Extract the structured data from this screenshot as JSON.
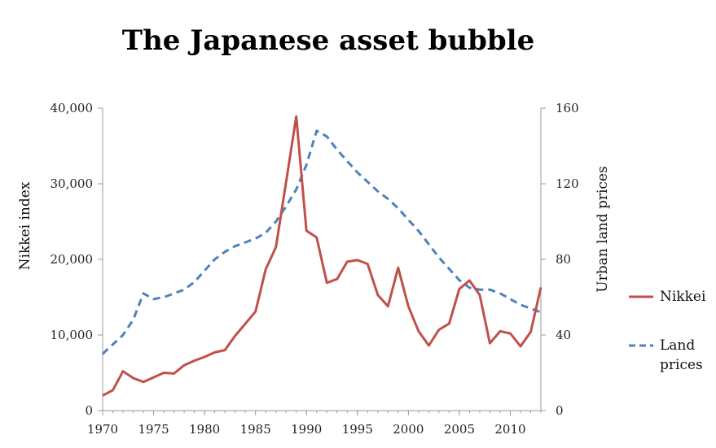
{
  "chart_data": {
    "type": "line",
    "title": "The Japanese asset bubble",
    "xlabel": "",
    "ylabel": "Nikkei index",
    "y2label": "Urban land prices",
    "xlim": [
      1970,
      2013
    ],
    "ylim": [
      0,
      40000
    ],
    "y2lim": [
      0,
      160
    ],
    "x_ticks": [
      "1970",
      "1975",
      "1980",
      "1985",
      "1990",
      "1995",
      "2000",
      "2005",
      "2010"
    ],
    "y_ticks": [
      "0",
      "10,000",
      "20,000",
      "30,000",
      "40,000"
    ],
    "y2_ticks": [
      "0",
      "40",
      "80",
      "120",
      "160"
    ],
    "grid": false,
    "legend_position": "right",
    "colors": {
      "nikkei": "#c0504d",
      "land": "#4f81bd"
    },
    "series": [
      {
        "name": "Nikkei",
        "axis": "left",
        "style": "solid",
        "x": [
          1970,
          1971,
          1972,
          1973,
          1974,
          1975,
          1976,
          1977,
          1978,
          1979,
          1980,
          1981,
          1982,
          1983,
          1984,
          1985,
          1986,
          1987,
          1988,
          1989,
          1990,
          1991,
          1992,
          1993,
          1994,
          1995,
          1996,
          1997,
          1998,
          1999,
          2000,
          2001,
          2002,
          2003,
          2004,
          2005,
          2006,
          2007,
          2008,
          2009,
          2010,
          2011,
          2012,
          2013
        ],
        "values": [
          2000,
          2700,
          5200,
          4300,
          3800,
          4400,
          5000,
          4900,
          6000,
          6600,
          7100,
          7700,
          8000,
          9900,
          11500,
          13100,
          18700,
          21600,
          30200,
          38900,
          23800,
          22900,
          16900,
          17400,
          19700,
          19900,
          19400,
          15300,
          13800,
          18900,
          13800,
          10500,
          8600,
          10700,
          11500,
          16100,
          17200,
          15300,
          8900,
          10500,
          10200,
          8500,
          10400,
          16300
        ]
      },
      {
        "name": "Land prices",
        "axis": "right",
        "style": "dashed",
        "x": [
          1970,
          1971,
          1972,
          1973,
          1974,
          1975,
          1976,
          1977,
          1978,
          1979,
          1980,
          1981,
          1982,
          1983,
          1984,
          1985,
          1986,
          1987,
          1988,
          1989,
          1990,
          1991,
          1992,
          1993,
          1994,
          1995,
          1996,
          1997,
          1998,
          1999,
          2000,
          2001,
          2002,
          2003,
          2004,
          2005,
          2006,
          2007,
          2008,
          2009,
          2010,
          2011,
          2012,
          2013
        ],
        "values": [
          30,
          35,
          40,
          48,
          62,
          59,
          60,
          62,
          64,
          68,
          74,
          80,
          84,
          87,
          89,
          91,
          94,
          100,
          108,
          117,
          130,
          148,
          145,
          138,
          132,
          126,
          121,
          116,
          112,
          107,
          101,
          95,
          88,
          81,
          75,
          69,
          65,
          64,
          64,
          62,
          59,
          56,
          54,
          52
        ]
      }
    ]
  }
}
